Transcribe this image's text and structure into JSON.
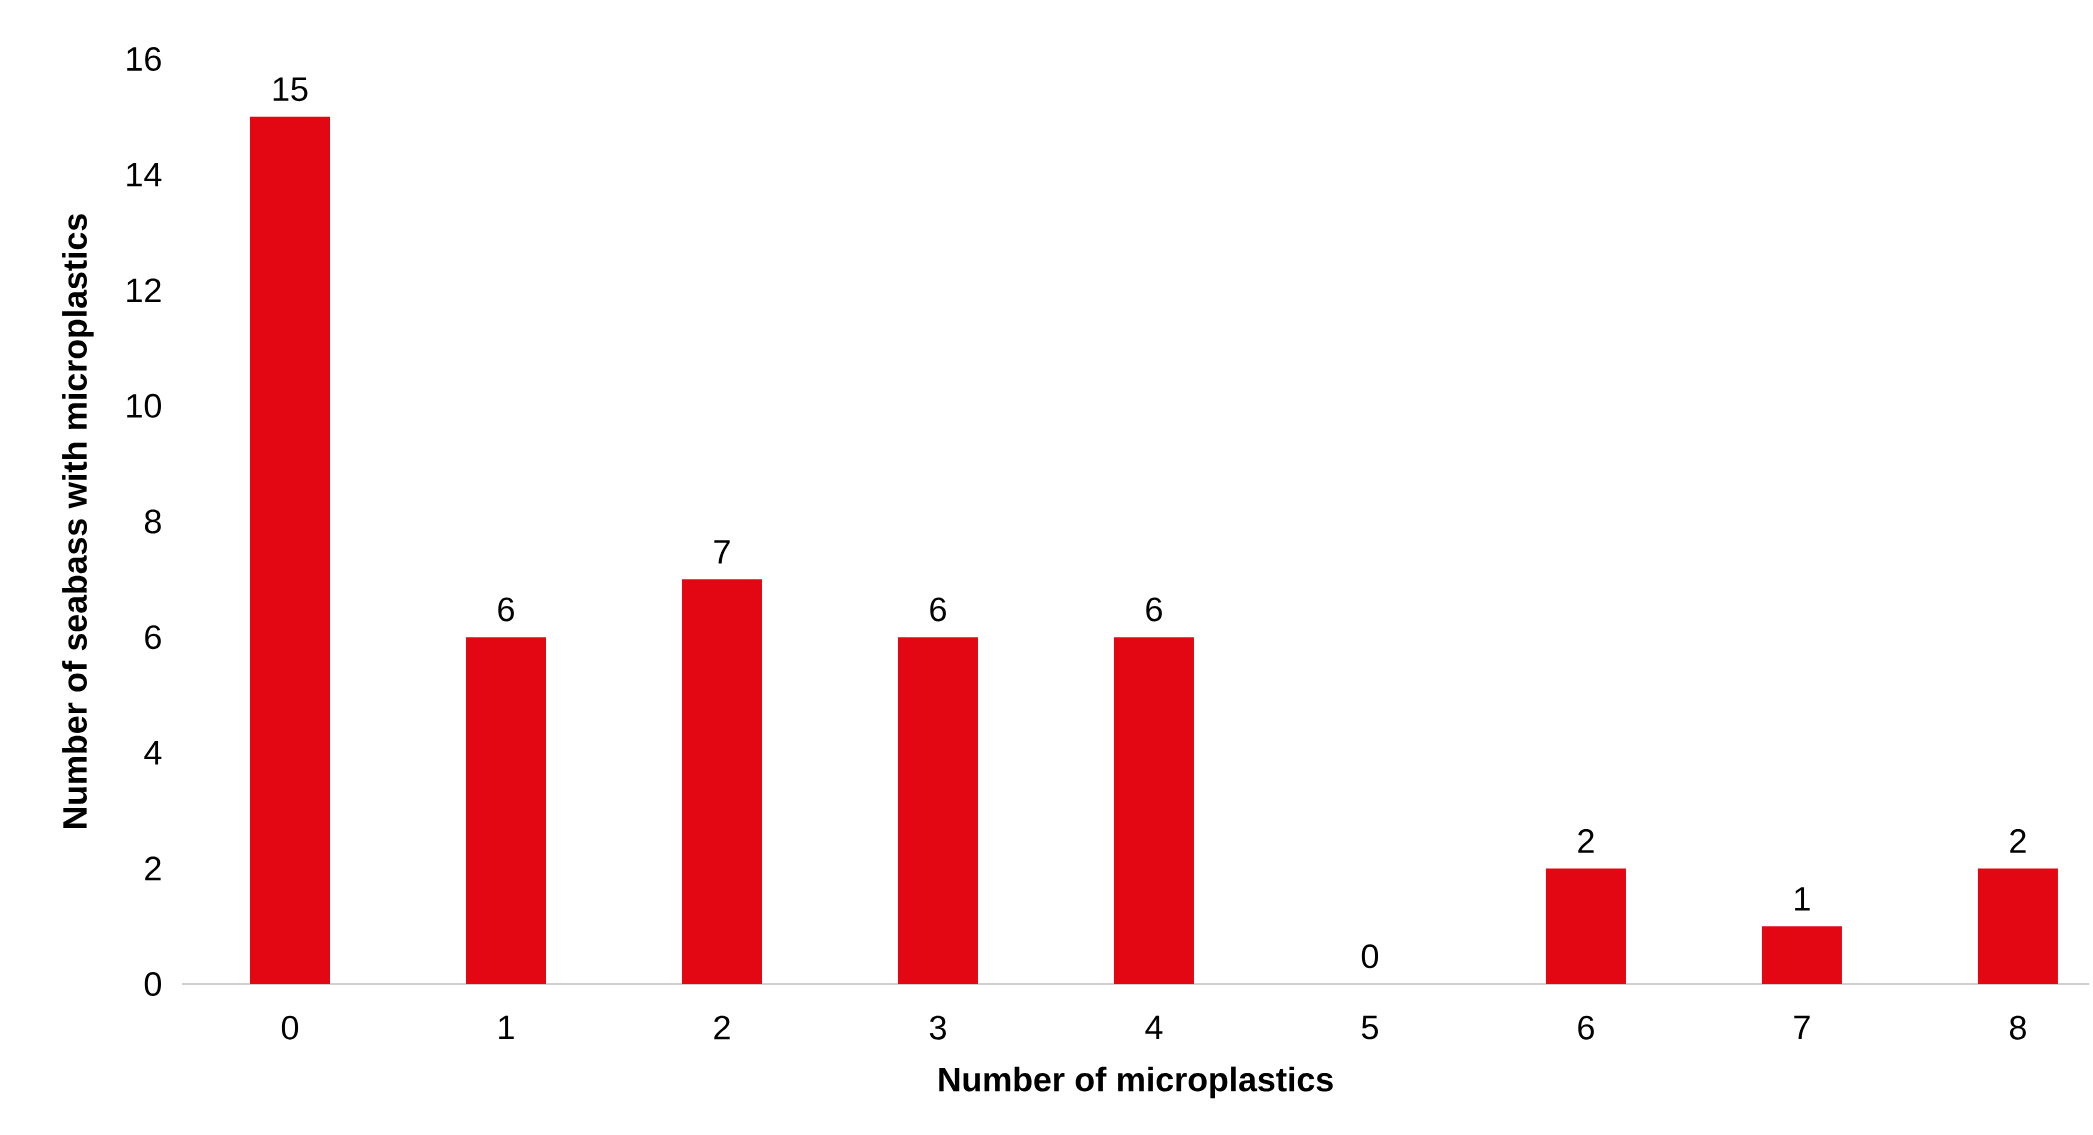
{
  "chart_data": {
    "type": "bar",
    "xlabel": "Number of microplastics",
    "ylabel": "Number of seabass with microplastics",
    "categories": [
      "0",
      "1",
      "2",
      "3",
      "4",
      "5",
      "6",
      "7",
      "8"
    ],
    "values": [
      15,
      6,
      7,
      6,
      6,
      0,
      2,
      1,
      2
    ],
    "color": "#e30613",
    "ylim": [
      0,
      16
    ],
    "yticks": [
      0,
      2,
      4,
      6,
      8,
      10,
      12,
      14,
      16
    ],
    "data_labels": true
  }
}
